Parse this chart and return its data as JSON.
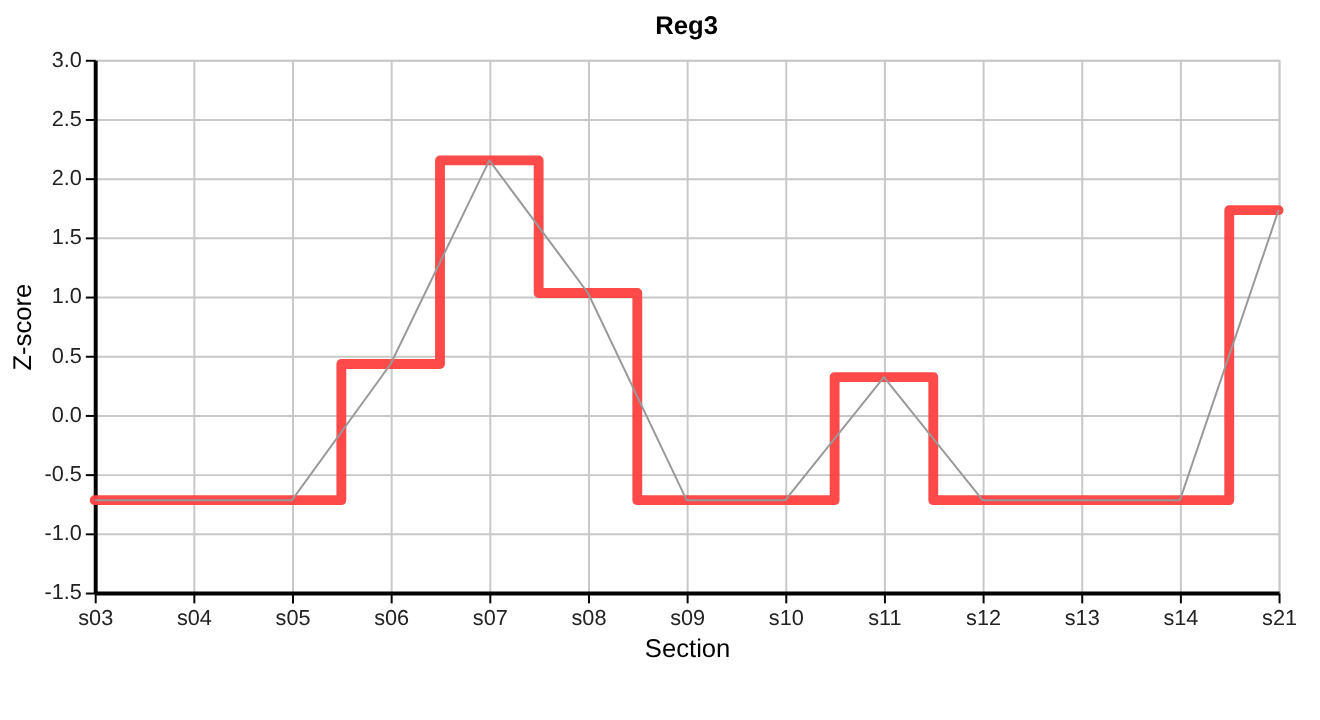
{
  "chart_data": {
    "type": "line",
    "title": "Reg3",
    "xlabel": "Section",
    "ylabel": "Z-score",
    "categories": [
      "s03",
      "s04",
      "s05",
      "s06",
      "s07",
      "s08",
      "s09",
      "s10",
      "s11",
      "s12",
      "s13",
      "s14",
      "s21"
    ],
    "series": [
      {
        "type": "step",
        "color": "#ff4040",
        "values": [
          -0.72,
          -0.72,
          -0.72,
          0.43,
          2.15,
          1.03,
          -0.72,
          -0.72,
          0.32,
          -0.72,
          -0.72,
          -0.72,
          1.73
        ]
      },
      {
        "color": "#999999",
        "values": [
          -0.72,
          -0.72,
          -0.72,
          0.43,
          2.15,
          1.03,
          -0.72,
          -0.72,
          0.32,
          -0.72,
          -0.72,
          -0.72,
          1.73
        ]
      }
    ],
    "ylim": [
      -1.5,
      3.0
    ],
    "yticks": [
      {
        "value": -1.5,
        "label": "-1.5"
      },
      {
        "value": -1,
        "label": "-1.0"
      },
      {
        "value": -0.5,
        "label": "-0.5"
      },
      {
        "value": 0,
        "label": "0.0"
      },
      {
        "value": 0.5,
        "label": "0.5"
      },
      {
        "value": 1,
        "label": "1.0"
      },
      {
        "value": 1.5,
        "label": "1.5"
      },
      {
        "value": 2,
        "label": "2.0"
      },
      {
        "value": 2.5,
        "label": "2.5"
      },
      {
        "value": 3,
        "label": "3.0"
      }
    ],
    "grid": true
  }
}
